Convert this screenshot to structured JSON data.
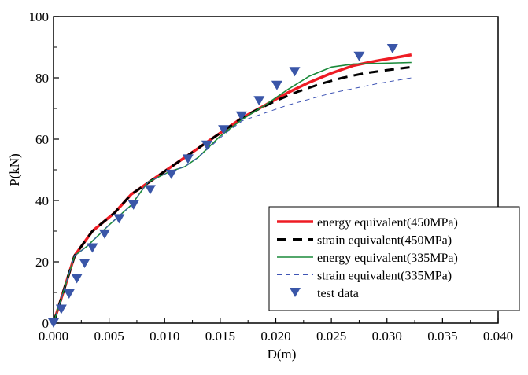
{
  "chart_data": {
    "type": "line",
    "title": "",
    "xlabel": "D(m)",
    "ylabel": "P(kN)",
    "xlim": [
      0,
      0.04
    ],
    "ylim": [
      0,
      100
    ],
    "xticks": [
      "0.000",
      "0.005",
      "0.010",
      "0.015",
      "0.020",
      "0.025",
      "0.030",
      "0.035",
      "0.040"
    ],
    "yticks": [
      "0",
      "20",
      "40",
      "60",
      "80",
      "100"
    ],
    "grid": false,
    "legend_placement": "bottom-right",
    "series": [
      {
        "name": "energy equivalent(450MPa)",
        "color": "#ee1c24",
        "style": "solid-thick",
        "x": [
          0,
          0.0019,
          0.0035,
          0.0055,
          0.007,
          0.009,
          0.011,
          0.013,
          0.015,
          0.017,
          0.019,
          0.021,
          0.023,
          0.025,
          0.027,
          0.029,
          0.0322
        ],
        "y": [
          0,
          22,
          30,
          36,
          42,
          47,
          52,
          57,
          62,
          67,
          71,
          75,
          78.5,
          81.5,
          84,
          85.5,
          87.5
        ]
      },
      {
        "name": "strain equivalent(450MPa)",
        "color": "#000000",
        "style": "dashed-thick",
        "x": [
          0,
          0.0019,
          0.0035,
          0.0055,
          0.007,
          0.009,
          0.011,
          0.013,
          0.015,
          0.017,
          0.018,
          0.02,
          0.022,
          0.024,
          0.026,
          0.028,
          0.03,
          0.0322
        ],
        "y": [
          0,
          22,
          30,
          36,
          42,
          47,
          52,
          57,
          62,
          67,
          69,
          72.5,
          75.5,
          78,
          80,
          81.5,
          82.5,
          83.5
        ]
      },
      {
        "name": "energy equivalent(335MPa)",
        "color": "#1a8a3a",
        "style": "solid",
        "x": [
          0,
          0.0019,
          0.003,
          0.005,
          0.007,
          0.0085,
          0.0105,
          0.0118,
          0.013,
          0.015,
          0.017,
          0.019,
          0.021,
          0.023,
          0.025,
          0.027,
          0.0322
        ],
        "y": [
          0,
          22,
          25,
          32,
          38.5,
          46,
          49.5,
          51,
          54,
          61,
          66.5,
          71,
          76,
          80.5,
          83.5,
          84.5,
          85
        ]
      },
      {
        "name": "strain equivalent(335MPa)",
        "color": "#3f55b5",
        "style": "dashed-thin",
        "x": [
          0,
          0.0019,
          0.003,
          0.005,
          0.007,
          0.0085,
          0.0105,
          0.0118,
          0.013,
          0.0155,
          0.017,
          0.019,
          0.021,
          0.023,
          0.025,
          0.027,
          0.029,
          0.0322
        ],
        "y": [
          0,
          22,
          25,
          32,
          38.5,
          46,
          49.5,
          51,
          54,
          62,
          66,
          68.5,
          71,
          73,
          75,
          76.5,
          78,
          80
        ]
      },
      {
        "name": "test data",
        "color": "#3a56a8",
        "style": "marker-triangle-down",
        "x": [
          0,
          0.0007,
          0.0014,
          0.0021,
          0.0028,
          0.0035,
          0.0046,
          0.0059,
          0.0072,
          0.0087,
          0.0106,
          0.0121,
          0.0138,
          0.0153,
          0.0169,
          0.0185,
          0.0201,
          0.0217,
          0.0275,
          0.0305
        ],
        "y": [
          0,
          4.5,
          9.5,
          14.5,
          19.5,
          24.5,
          29,
          34,
          38.5,
          43.5,
          48.5,
          53.5,
          58,
          63,
          67.5,
          72.5,
          77.5,
          82,
          87,
          89.5
        ]
      }
    ]
  }
}
